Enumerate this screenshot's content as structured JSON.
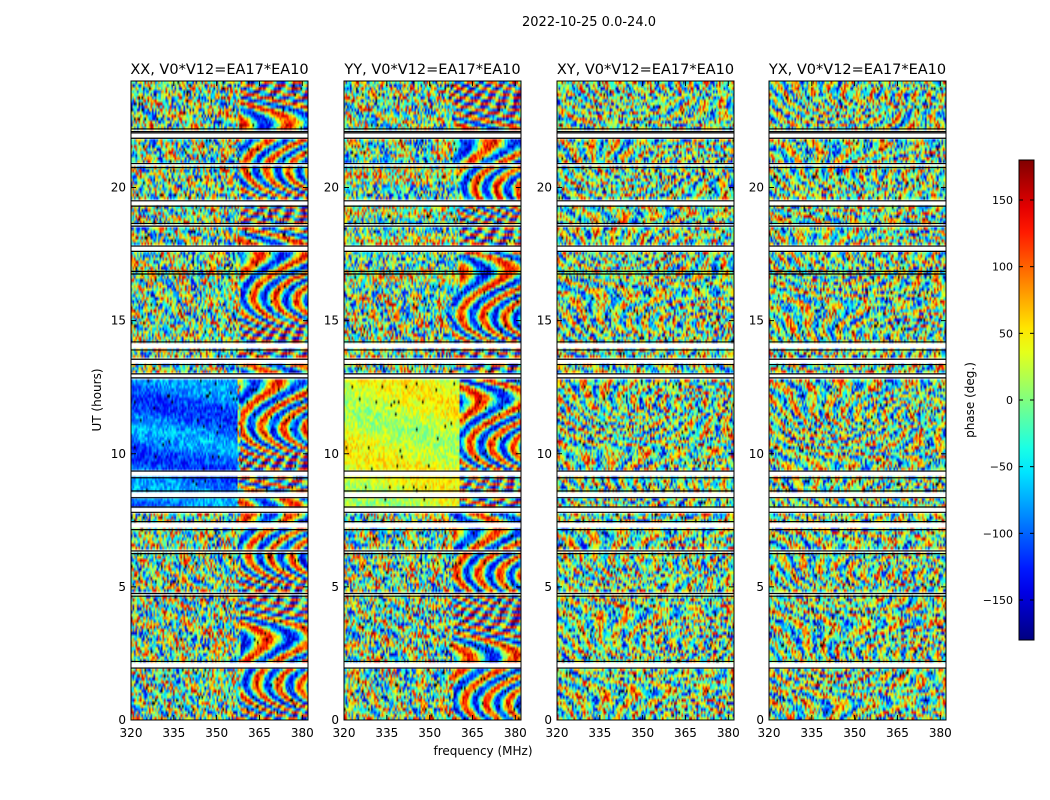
{
  "chart_data": {
    "type": "heatmap",
    "title": "2022-10-25 0.0-24.0",
    "xlabel": "frequency (MHz)",
    "ylabel": "UT (hours)",
    "xlim": [
      320,
      382
    ],
    "ylim": [
      0,
      24
    ],
    "xticks": [
      320,
      335,
      350,
      365,
      380
    ],
    "yticks": [
      0,
      5,
      10,
      15,
      20
    ],
    "panels": [
      {
        "title": "XX, V0*V12=EA17*EA10",
        "pol": "XX"
      },
      {
        "title": "YY, V0*V12=EA17*EA10",
        "pol": "YY"
      },
      {
        "title": "XY, V0*V12=EA17*EA10",
        "pol": "XY"
      },
      {
        "title": "YX, V0*V12=EA17*EA10",
        "pol": "YX"
      }
    ],
    "colorbar": {
      "label": "phase (deg.)",
      "range": [
        -180,
        180
      ],
      "ticks": [
        150,
        100,
        50,
        0,
        -50,
        -100,
        -150
      ],
      "colormap": "jet"
    },
    "blank_ut_ranges": [
      [
        1.95,
        2.2
      ],
      [
        4.65,
        4.75
      ],
      [
        6.25,
        6.35
      ],
      [
        7.15,
        7.45
      ],
      [
        7.8,
        8.0
      ],
      [
        8.35,
        8.6
      ],
      [
        9.1,
        9.35
      ],
      [
        12.85,
        13.0
      ],
      [
        13.35,
        13.55
      ],
      [
        13.9,
        14.2
      ],
      [
        16.75,
        16.85
      ],
      [
        17.6,
        17.8
      ],
      [
        18.55,
        18.65
      ],
      [
        19.3,
        19.5
      ],
      [
        20.75,
        20.9
      ],
      [
        21.85,
        22.05
      ],
      [
        22.1,
        22.2
      ]
    ]
  }
}
